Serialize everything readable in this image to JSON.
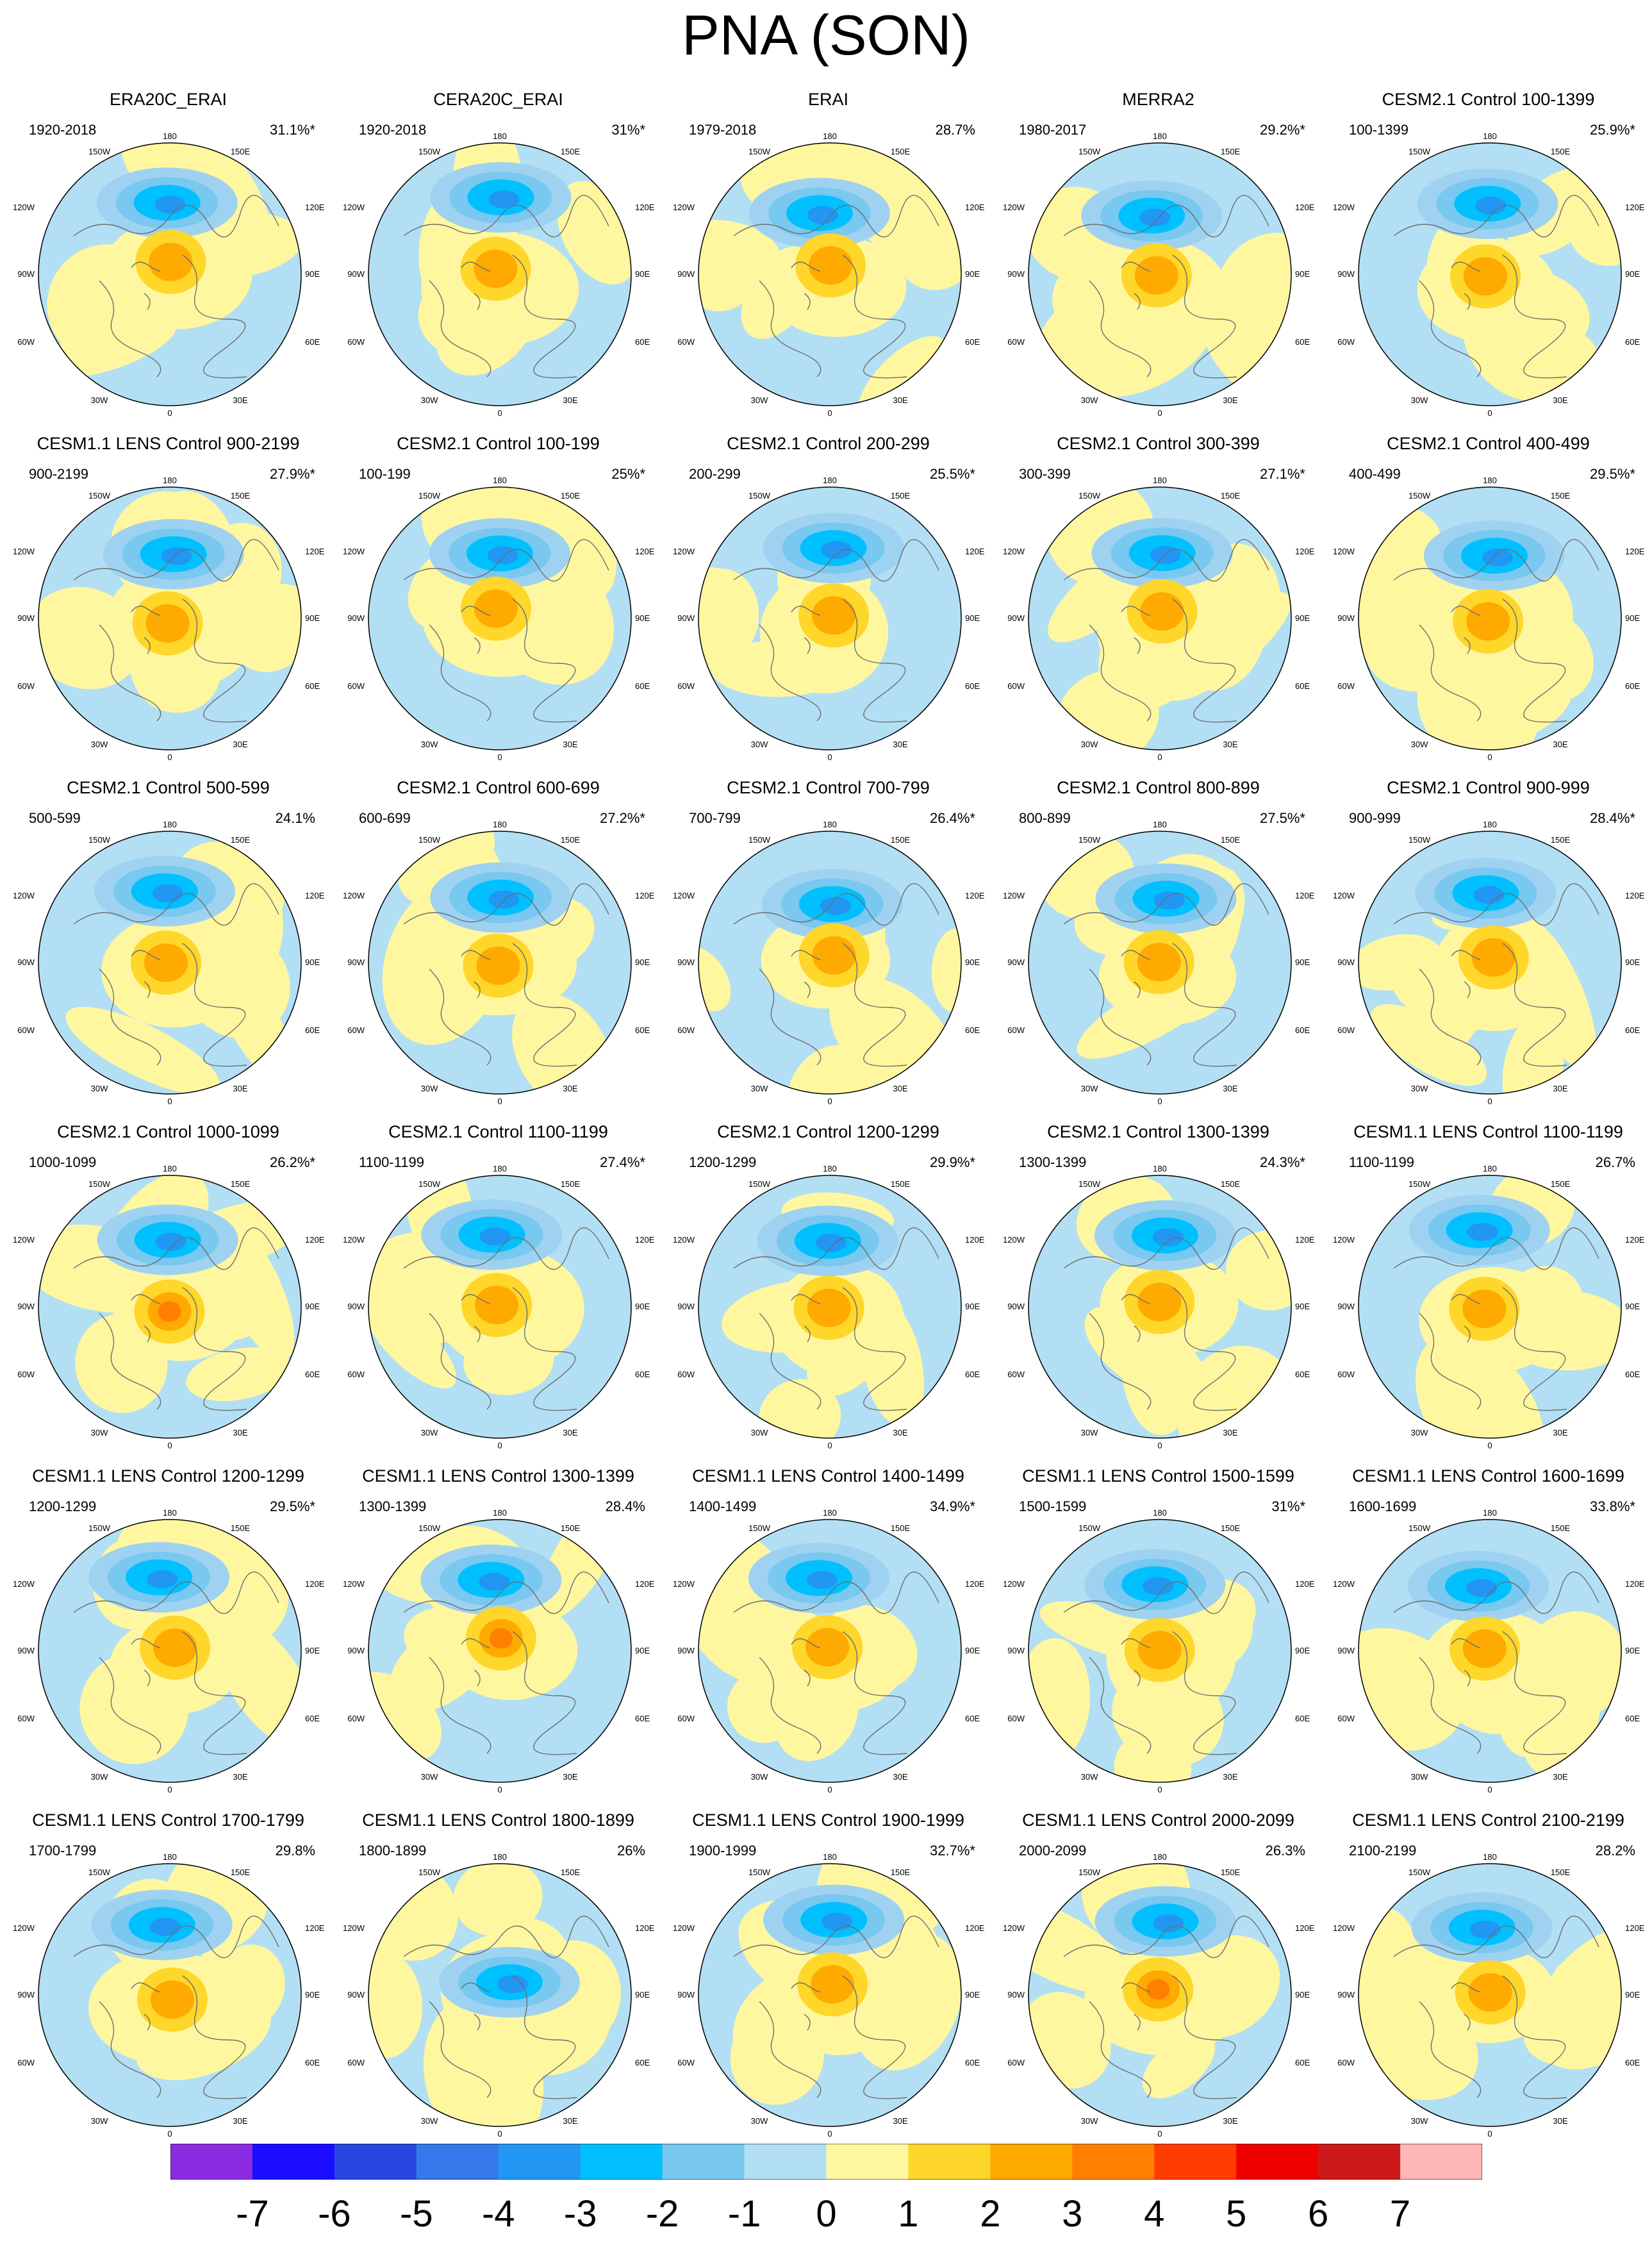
{
  "title": "PNA (SON)",
  "panels": [
    {
      "title": "ERA20C_ERAI",
      "period": "1920-2018",
      "pct": "31.1%*"
    },
    {
      "title": "CERA20C_ERAI",
      "period": "1920-2018",
      "pct": "31%*"
    },
    {
      "title": "ERAI",
      "period": "1979-2018",
      "pct": "28.7%"
    },
    {
      "title": "MERRA2",
      "period": "1980-2017",
      "pct": "29.2%*"
    },
    {
      "title": "CESM2.1 Control 100-1399",
      "period": "100-1399",
      "pct": "25.9%*"
    },
    {
      "title": "CESM1.1 LENS Control 900-2199",
      "period": "900-2199",
      "pct": "27.9%*"
    },
    {
      "title": "CESM2.1 Control 100-199",
      "period": "100-199",
      "pct": "25%*"
    },
    {
      "title": "CESM2.1 Control 200-299",
      "period": "200-299",
      "pct": "25.5%*"
    },
    {
      "title": "CESM2.1 Control 300-399",
      "period": "300-399",
      "pct": "27.1%*"
    },
    {
      "title": "CESM2.1 Control 400-499",
      "period": "400-499",
      "pct": "29.5%*"
    },
    {
      "title": "CESM2.1 Control 500-599",
      "period": "500-599",
      "pct": "24.1%"
    },
    {
      "title": "CESM2.1 Control 600-699",
      "period": "600-699",
      "pct": "27.2%*"
    },
    {
      "title": "CESM2.1 Control 700-799",
      "period": "700-799",
      "pct": "26.4%*"
    },
    {
      "title": "CESM2.1 Control 800-899",
      "period": "800-899",
      "pct": "27.5%*"
    },
    {
      "title": "CESM2.1 Control 900-999",
      "period": "900-999",
      "pct": "28.4%*"
    },
    {
      "title": "CESM2.1 Control 1000-1099",
      "period": "1000-1099",
      "pct": "26.2%*"
    },
    {
      "title": "CESM2.1 Control 1100-1199",
      "period": "1100-1199",
      "pct": "27.4%*"
    },
    {
      "title": "CESM2.1 Control 1200-1299",
      "period": "1200-1299",
      "pct": "29.9%*"
    },
    {
      "title": "CESM2.1 Control 1300-1399",
      "period": "1300-1399",
      "pct": "24.3%*"
    },
    {
      "title": "CESM1.1 LENS Control 1100-1199",
      "period": "1100-1199",
      "pct": "26.7%"
    },
    {
      "title": "CESM1.1 LENS Control 1200-1299",
      "period": "1200-1299",
      "pct": "29.5%*"
    },
    {
      "title": "CESM1.1 LENS Control 1300-1399",
      "period": "1300-1399",
      "pct": "28.4%"
    },
    {
      "title": "CESM1.1 LENS Control 1400-1499",
      "period": "1400-1499",
      "pct": "34.9%*"
    },
    {
      "title": "CESM1.1 LENS Control 1500-1599",
      "period": "1500-1599",
      "pct": "31%*"
    },
    {
      "title": "CESM1.1 LENS Control 1600-1699",
      "period": "1600-1699",
      "pct": "33.8%*"
    },
    {
      "title": "CESM1.1 LENS Control 1700-1799",
      "period": "1700-1799",
      "pct": "29.8%"
    },
    {
      "title": "CESM1.1 LENS Control 1800-1899",
      "period": "1800-1899",
      "pct": "26%"
    },
    {
      "title": "CESM1.1 LENS Control 1900-1999",
      "period": "1900-1999",
      "pct": "32.7%*"
    },
    {
      "title": "CESM1.1 LENS Control 2000-2099",
      "period": "2000-2099",
      "pct": "26.3%"
    },
    {
      "title": "CESM1.1 LENS Control 2100-2199",
      "period": "2100-2199",
      "pct": "28.2%"
    }
  ],
  "map_labels": {
    "top": "180",
    "bottom": "0",
    "upper_left": "150W",
    "upper_right": "150E",
    "left_upper": "120W",
    "right_upper": "120E",
    "left": "90W",
    "right": "90E",
    "left_lower": "60W",
    "right_lower": "60E",
    "lower_left": "30W",
    "lower_right": "30E"
  },
  "colorbar": {
    "labels": [
      "-7",
      "-6",
      "-5",
      "-4",
      "-3",
      "-2",
      "-1",
      "0",
      "1",
      "2",
      "3",
      "4",
      "5",
      "6",
      "7"
    ],
    "colors": [
      "#8a2be2",
      "#1a0dff",
      "#2a46e0",
      "#3578ea",
      "#2196f3",
      "#00c0ff",
      "#78c8f0",
      "#b2dff3",
      "#fff7a0",
      "#ffd62a",
      "#ffaa00",
      "#ff7f00",
      "#ff3c00",
      "#ee0000",
      "#cc1a1a",
      "#ffb6b6"
    ]
  },
  "chart_data": {
    "type": "heatmap",
    "description_fields": "Polar stereographic maps of Northern Hemisphere PNA pattern",
    "panel_count": 30,
    "grid": "6 rows x 5 columns",
    "value_range": [
      -7,
      7
    ],
    "level_step": 1
  }
}
